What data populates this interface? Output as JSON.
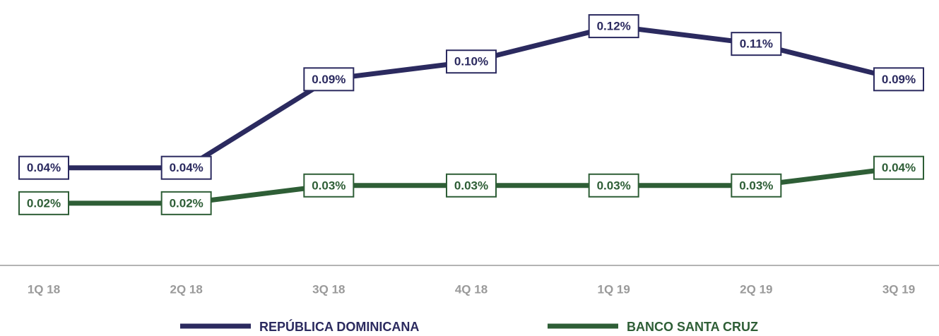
{
  "chart_data": {
    "type": "line",
    "categories": [
      "1Q 18",
      "2Q 18",
      "3Q 18",
      "4Q 18",
      "1Q 19",
      "2Q 19",
      "3Q 19"
    ],
    "series": [
      {
        "name": "REPÚBLICA DOMINICANA",
        "color": "#2b2a5f",
        "values": [
          0.04,
          0.04,
          0.09,
          0.1,
          0.12,
          0.11,
          0.09
        ],
        "value_labels": [
          "0.04%",
          "0.04%",
          "0.09%",
          "0.10%",
          "0.12%",
          "0.11%",
          "0.09%"
        ]
      },
      {
        "name": "BANCO SANTA CRUZ",
        "color": "#2e5e36",
        "values": [
          0.02,
          0.02,
          0.03,
          0.03,
          0.03,
          0.03,
          0.04
        ],
        "value_labels": [
          "0.02%",
          "0.02%",
          "0.03%",
          "0.03%",
          "0.03%",
          "0.03%",
          "0.04%"
        ]
      }
    ],
    "ylim": [
      0,
      0.13
    ]
  }
}
